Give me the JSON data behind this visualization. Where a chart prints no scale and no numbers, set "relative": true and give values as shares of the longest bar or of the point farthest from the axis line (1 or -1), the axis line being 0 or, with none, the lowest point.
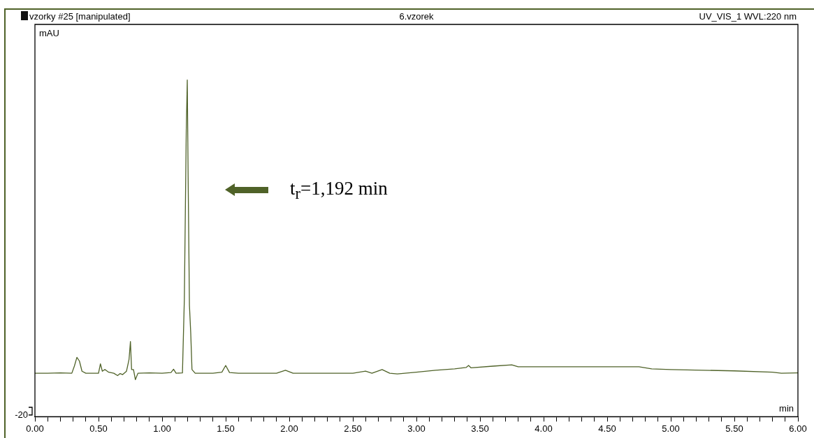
{
  "chart_data": {
    "type": "line",
    "title": "6.vzorek",
    "xlabel": "min",
    "ylabel": "mAU",
    "relative": true,
    "grid": false,
    "legend": false,
    "marker": "none",
    "line_style": "solid",
    "annotations": [
      "vzorky #25 [manipulated]",
      "UV_VIS_1 WVL:220 nm",
      "-20",
      "t$_{r}$=1,192 min"
    ],
    "xlim": [
      0,
      6
    ],
    "xticks": [
      {
        "value": 0,
        "label": "0.00"
      },
      {
        "value": 0.1,
        "label": null
      },
      {
        "value": 0.2,
        "label": null
      },
      {
        "value": 0.3,
        "label": null
      },
      {
        "value": 0.4,
        "label": null
      },
      {
        "value": 0.5,
        "label": "0.50"
      },
      {
        "value": 0.6,
        "label": null
      },
      {
        "value": 0.7,
        "label": null
      },
      {
        "value": 0.8,
        "label": null
      },
      {
        "value": 0.9,
        "label": null
      },
      {
        "value": 1,
        "label": "1.00"
      },
      {
        "value": 1.1,
        "label": null
      },
      {
        "value": 1.2,
        "label": null
      },
      {
        "value": 1.3,
        "label": null
      },
      {
        "value": 1.4,
        "label": null
      },
      {
        "value": 1.5,
        "label": "1.50"
      },
      {
        "value": 1.6,
        "label": null
      },
      {
        "value": 1.7,
        "label": null
      },
      {
        "value": 1.8,
        "label": null
      },
      {
        "value": 1.9,
        "label": null
      },
      {
        "value": 2,
        "label": "2.00"
      },
      {
        "value": 2.1,
        "label": null
      },
      {
        "value": 2.2,
        "label": null
      },
      {
        "value": 2.3,
        "label": null
      },
      {
        "value": 2.4,
        "label": null
      },
      {
        "value": 2.5,
        "label": "2.50"
      },
      {
        "value": 2.6,
        "label": null
      },
      {
        "value": 2.7,
        "label": null
      },
      {
        "value": 2.8,
        "label": null
      },
      {
        "value": 2.9,
        "label": null
      },
      {
        "value": 3,
        "label": "3.00"
      },
      {
        "value": 3.1,
        "label": null
      },
      {
        "value": 3.2,
        "label": null
      },
      {
        "value": 3.3,
        "label": null
      },
      {
        "value": 3.4,
        "label": null
      },
      {
        "value": 3.5,
        "label": "3.50"
      },
      {
        "value": 3.6,
        "label": null
      },
      {
        "value": 3.7,
        "label": null
      },
      {
        "value": 3.8,
        "label": null
      },
      {
        "value": 3.9,
        "label": null
      },
      {
        "value": 4,
        "label": "4.00"
      },
      {
        "value": 4.1,
        "label": null
      },
      {
        "value": 4.2,
        "label": null
      },
      {
        "value": 4.3,
        "label": null
      },
      {
        "value": 4.4,
        "label": null
      },
      {
        "value": 4.5,
        "label": "4.50"
      },
      {
        "value": 4.6,
        "label": null
      },
      {
        "value": 4.7,
        "label": null
      },
      {
        "value": 4.8,
        "label": null
      },
      {
        "value": 4.9,
        "label": null
      },
      {
        "value": 5,
        "label": "5.00"
      },
      {
        "value": 5.1,
        "label": null
      },
      {
        "value": 5.2,
        "label": null
      },
      {
        "value": 5.3,
        "label": null
      },
      {
        "value": 5.4,
        "label": null
      },
      {
        "value": 5.5,
        "label": "5.50"
      },
      {
        "value": 5.6,
        "label": null
      },
      {
        "value": 5.7,
        "label": null
      },
      {
        "value": 5.8,
        "label": null
      },
      {
        "value": 5.9,
        "label": null
      },
      {
        "value": 6,
        "label": "6.00"
      }
    ],
    "x": [
      0,
      0.1,
      0.2,
      0.29,
      0.31,
      0.33,
      0.35,
      0.37,
      0.4,
      0.5,
      0.515,
      0.53,
      0.55,
      0.58,
      0.62,
      0.65,
      0.67,
      0.69,
      0.72,
      0.74,
      0.751,
      0.76,
      0.775,
      0.79,
      0.81,
      0.9,
      1.0,
      1.07,
      1.09,
      1.11,
      1.16,
      1.175,
      1.19,
      1.198,
      1.205,
      1.215,
      1.225,
      1.235,
      1.26,
      1.4,
      1.47,
      1.5,
      1.53,
      1.6,
      1.9,
      1.97,
      2.03,
      2.5,
      2.6,
      2.65,
      2.73,
      2.79,
      2.85,
      3.0,
      3.15,
      3.3,
      3.39,
      3.41,
      3.43,
      3.6,
      3.75,
      3.8,
      4.0,
      4.5,
      4.75,
      4.85,
      5.0,
      5.5,
      5.8,
      5.87,
      6.0
    ],
    "series": [
      {
        "color": "#4f6228",
        "values": [
          0.129,
          0.129,
          0.13,
          0.129,
          0.15,
          0.176,
          0.165,
          0.135,
          0.129,
          0.129,
          0.157,
          0.135,
          0.14,
          0.132,
          0.129,
          0.122,
          0.128,
          0.125,
          0.135,
          0.17,
          0.223,
          0.14,
          0.14,
          0.11,
          0.129,
          0.13,
          0.129,
          0.131,
          0.141,
          0.129,
          0.13,
          0.35,
          0.85,
          1.0,
          0.7,
          0.33,
          0.25,
          0.14,
          0.129,
          0.129,
          0.132,
          0.152,
          0.131,
          0.129,
          0.129,
          0.138,
          0.129,
          0.129,
          0.135,
          0.129,
          0.14,
          0.129,
          0.127,
          0.132,
          0.138,
          0.142,
          0.146,
          0.152,
          0.145,
          0.15,
          0.154,
          0.148,
          0.148,
          0.148,
          0.148,
          0.142,
          0.14,
          0.136,
          0.132,
          0.129,
          0.13
        ]
      }
    ]
  }
}
